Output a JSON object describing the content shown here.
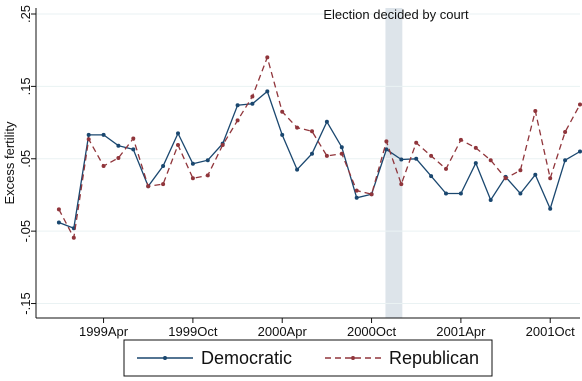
{
  "chart_data": {
    "type": "line",
    "title": "",
    "xlabel": "",
    "ylabel": "Excess fertility",
    "x_ticks": [
      "1999Apr",
      "1999Oct",
      "2000Apr",
      "2000Oct",
      "2001Apr",
      "2001Oct"
    ],
    "y_ticks": [
      ".25",
      ".15",
      ".05",
      "-.05",
      "-.15"
    ],
    "y_tick_values": [
      0.25,
      0.15,
      0.05,
      -0.05,
      -0.15
    ],
    "ylim": [
      -0.17,
      0.25
    ],
    "x_range": [
      "1998Dec",
      "2001Dec"
    ],
    "grid": true,
    "legend_position": "bottom",
    "annotation": {
      "text": "Election decided by court",
      "shaded_period": [
        "2000Nov",
        "2000Dec"
      ],
      "shade_color": "#dde4ea"
    },
    "x": [
      "1999Jan",
      "1999Feb",
      "1999Mar",
      "1999Apr",
      "1999May",
      "1999Jun",
      "1999Jul",
      "1999Aug",
      "1999Sep",
      "1999Oct",
      "1999Nov",
      "1999Dec",
      "2000Jan",
      "2000Feb",
      "2000Mar",
      "2000Apr",
      "2000May",
      "2000Jun",
      "2000Jul",
      "2000Aug",
      "2000Sep",
      "2000Oct",
      "2000Nov",
      "2000Dec",
      "2001Jan",
      "2001Feb",
      "2001Mar",
      "2001Apr",
      "2001May",
      "2001Jun",
      "2001Jul",
      "2001Aug",
      "2001Sep",
      "2001Oct",
      "2001Nov",
      "2001Dec"
    ],
    "series": [
      {
        "name": "Democratic",
        "color": "#1a476f",
        "style": "solid",
        "values": [
          -0.038,
          -0.046,
          0.083,
          0.083,
          0.068,
          0.063,
          0.012,
          0.04,
          0.085,
          0.043,
          0.048,
          0.071,
          0.124,
          0.126,
          0.143,
          0.083,
          0.035,
          0.057,
          0.101,
          0.066,
          -0.004,
          0.001,
          0.063,
          0.049,
          0.05,
          0.026,
          0.002,
          0.002,
          0.044,
          -0.007,
          0.025,
          0.002,
          0.028,
          -0.019,
          0.048,
          0.06
        ]
      },
      {
        "name": "Republican",
        "color": "#90353b",
        "style": "dashed",
        "values": [
          -0.02,
          -0.059,
          0.077,
          0.04,
          0.051,
          0.078,
          0.012,
          0.015,
          0.069,
          0.023,
          0.027,
          0.069,
          0.103,
          0.136,
          0.19,
          0.115,
          0.093,
          0.088,
          0.054,
          0.057,
          0.006,
          0.001,
          0.074,
          0.015,
          0.072,
          0.054,
          0.036,
          0.076,
          0.065,
          0.048,
          0.023,
          0.034,
          0.116,
          0.023,
          0.087,
          0.125
        ]
      }
    ]
  }
}
